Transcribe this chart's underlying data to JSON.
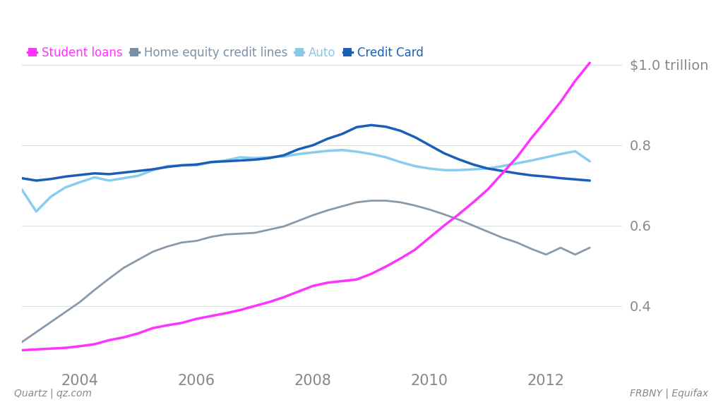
{
  "title": "$1.0 trillion",
  "legend_labels": [
    "Student loans",
    "Home equity credit lines",
    "Auto",
    "Credit Card"
  ],
  "legend_colors": [
    "#ff33ff",
    "#7a8fa6",
    "#8ac8e8",
    "#1a5eb8"
  ],
  "footer_left": "Quartz | qz.com",
  "footer_right": "FRBNY | Equifax",
  "background_color": "#ffffff",
  "ytick_labels": [
    "0.4",
    "0.6",
    "0.8",
    "$1.0 trillion"
  ],
  "ytick_values": [
    0.4,
    0.6,
    0.8,
    1.0
  ],
  "ylim": [
    0.25,
    1.06
  ],
  "xlim": [
    2003.0,
    2013.3
  ],
  "xtick_positions": [
    2004,
    2006,
    2008,
    2010,
    2012
  ],
  "grid_color": "#dddddd",
  "tick_label_color": "#888888",
  "footer_color": "#888888",
  "series": {
    "student_loans": {
      "color": "#ff33ff",
      "lw": 2.5,
      "x": [
        2003.0,
        2003.25,
        2003.5,
        2003.75,
        2004.0,
        2004.25,
        2004.5,
        2004.75,
        2005.0,
        2005.25,
        2005.5,
        2005.75,
        2006.0,
        2006.25,
        2006.5,
        2006.75,
        2007.0,
        2007.25,
        2007.5,
        2007.75,
        2008.0,
        2008.25,
        2008.5,
        2008.75,
        2009.0,
        2009.25,
        2009.5,
        2009.75,
        2010.0,
        2010.25,
        2010.5,
        2010.75,
        2011.0,
        2011.25,
        2011.5,
        2011.75,
        2012.0,
        2012.25,
        2012.5,
        2012.75
      ],
      "y": [
        0.29,
        0.292,
        0.294,
        0.296,
        0.3,
        0.305,
        0.315,
        0.322,
        0.332,
        0.345,
        0.352,
        0.358,
        0.368,
        0.375,
        0.382,
        0.39,
        0.4,
        0.41,
        0.422,
        0.436,
        0.45,
        0.458,
        0.462,
        0.466,
        0.48,
        0.498,
        0.518,
        0.54,
        0.57,
        0.6,
        0.628,
        0.658,
        0.69,
        0.73,
        0.77,
        0.818,
        0.862,
        0.908,
        0.96,
        1.005
      ]
    },
    "home_equity": {
      "color": "#8899aa",
      "lw": 2.0,
      "x": [
        2003.0,
        2003.25,
        2003.5,
        2003.75,
        2004.0,
        2004.25,
        2004.5,
        2004.75,
        2005.0,
        2005.25,
        2005.5,
        2005.75,
        2006.0,
        2006.25,
        2006.5,
        2006.75,
        2007.0,
        2007.25,
        2007.5,
        2007.75,
        2008.0,
        2008.25,
        2008.5,
        2008.75,
        2009.0,
        2009.25,
        2009.5,
        2009.75,
        2010.0,
        2010.25,
        2010.5,
        2010.75,
        2011.0,
        2011.25,
        2011.5,
        2011.75,
        2012.0,
        2012.25,
        2012.5,
        2012.75
      ],
      "y": [
        0.31,
        0.335,
        0.36,
        0.385,
        0.41,
        0.44,
        0.468,
        0.495,
        0.515,
        0.535,
        0.548,
        0.558,
        0.562,
        0.572,
        0.578,
        0.58,
        0.582,
        0.59,
        0.598,
        0.612,
        0.626,
        0.638,
        0.648,
        0.658,
        0.662,
        0.662,
        0.658,
        0.65,
        0.64,
        0.628,
        0.615,
        0.6,
        0.585,
        0.57,
        0.558,
        0.542,
        0.528,
        0.545,
        0.528,
        0.545
      ]
    },
    "auto": {
      "color": "#88ccee",
      "lw": 2.5,
      "x": [
        2003.0,
        2003.25,
        2003.5,
        2003.75,
        2004.0,
        2004.25,
        2004.5,
        2004.75,
        2005.0,
        2005.25,
        2005.5,
        2005.75,
        2006.0,
        2006.25,
        2006.5,
        2006.75,
        2007.0,
        2007.25,
        2007.5,
        2007.75,
        2008.0,
        2008.25,
        2008.5,
        2008.75,
        2009.0,
        2009.25,
        2009.5,
        2009.75,
        2010.0,
        2010.25,
        2010.5,
        2010.75,
        2011.0,
        2011.25,
        2011.5,
        2011.75,
        2012.0,
        2012.25,
        2012.5,
        2012.75
      ],
      "y": [
        0.69,
        0.635,
        0.672,
        0.695,
        0.708,
        0.72,
        0.712,
        0.718,
        0.724,
        0.738,
        0.748,
        0.75,
        0.75,
        0.758,
        0.762,
        0.77,
        0.768,
        0.77,
        0.772,
        0.778,
        0.782,
        0.786,
        0.788,
        0.784,
        0.778,
        0.77,
        0.758,
        0.748,
        0.742,
        0.738,
        0.738,
        0.74,
        0.742,
        0.748,
        0.755,
        0.762,
        0.77,
        0.778,
        0.785,
        0.76
      ]
    },
    "credit_card": {
      "color": "#1a5eb8",
      "lw": 2.5,
      "x": [
        2003.0,
        2003.25,
        2003.5,
        2003.75,
        2004.0,
        2004.25,
        2004.5,
        2004.75,
        2005.0,
        2005.25,
        2005.5,
        2005.75,
        2006.0,
        2006.25,
        2006.5,
        2006.75,
        2007.0,
        2007.25,
        2007.5,
        2007.75,
        2008.0,
        2008.25,
        2008.5,
        2008.75,
        2009.0,
        2009.25,
        2009.5,
        2009.75,
        2010.0,
        2010.25,
        2010.5,
        2010.75,
        2011.0,
        2011.25,
        2011.5,
        2011.75,
        2012.0,
        2012.25,
        2012.5,
        2012.75
      ],
      "y": [
        0.718,
        0.712,
        0.716,
        0.722,
        0.726,
        0.73,
        0.728,
        0.732,
        0.736,
        0.74,
        0.746,
        0.75,
        0.752,
        0.758,
        0.76,
        0.762,
        0.764,
        0.768,
        0.775,
        0.79,
        0.8,
        0.816,
        0.828,
        0.845,
        0.85,
        0.846,
        0.836,
        0.82,
        0.8,
        0.78,
        0.765,
        0.752,
        0.742,
        0.736,
        0.73,
        0.725,
        0.722,
        0.718,
        0.715,
        0.712
      ]
    }
  }
}
